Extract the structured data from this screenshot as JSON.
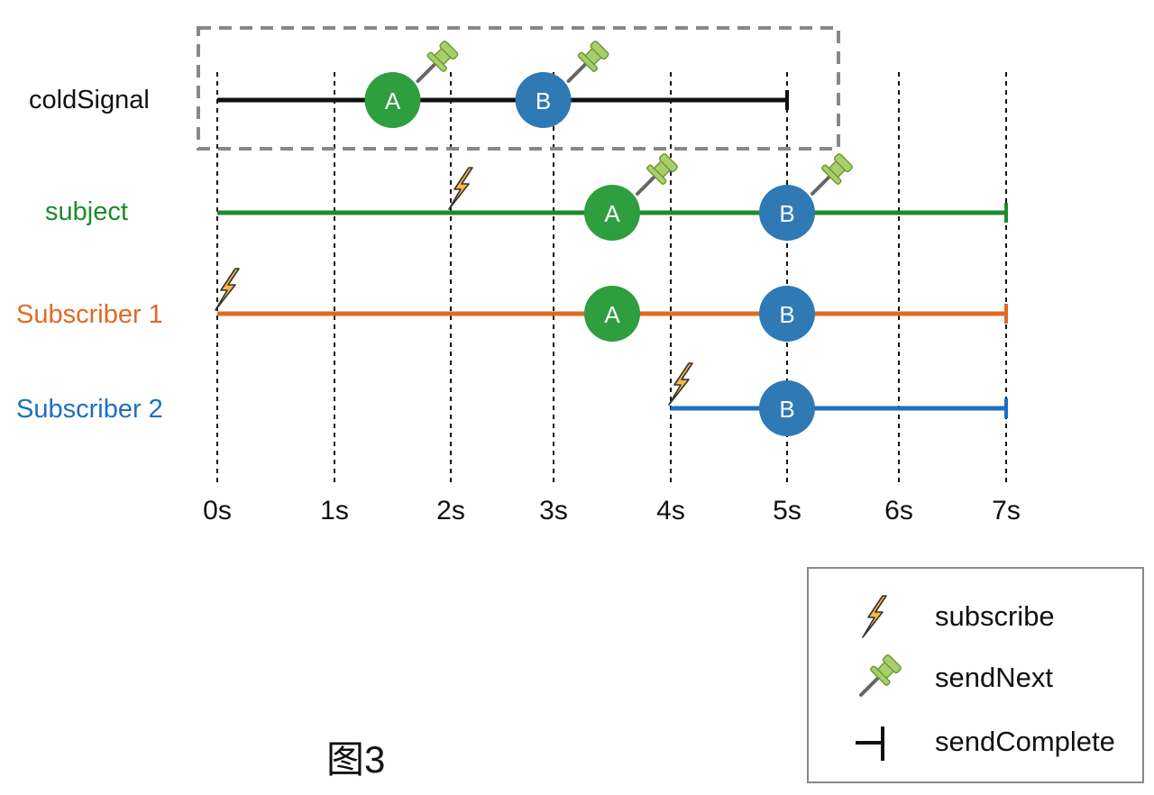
{
  "caption": "图3",
  "time_axis": {
    "ticks": [
      "0s",
      "1s",
      "2s",
      "3s",
      "4s",
      "5s",
      "6s",
      "7s"
    ]
  },
  "rows": [
    {
      "id": "coldSignal",
      "label": "coldSignal",
      "color": "#111111",
      "line_start": 0,
      "line_end": 5,
      "subscribe_at": null,
      "events": [
        {
          "value": "A",
          "at": 1.5,
          "color": "#2e9e3e",
          "pin": true
        },
        {
          "value": "B",
          "at": 2.9,
          "color": "#2f7ab5",
          "pin": true
        }
      ],
      "complete_at": 5
    },
    {
      "id": "subject",
      "label": "subject",
      "color": "#1e8a2e",
      "line_start": 0,
      "line_end": 7,
      "subscribe_at": 2,
      "events": [
        {
          "value": "A",
          "at": 3.5,
          "color": "#2e9e3e",
          "pin": true
        },
        {
          "value": "B",
          "at": 5,
          "color": "#2f7ab5",
          "pin": true
        }
      ],
      "complete_at": 7
    },
    {
      "id": "subscriber1",
      "label": "Subscriber 1",
      "color": "#e06a24",
      "line_start": 0,
      "line_end": 7,
      "subscribe_at": 0,
      "events": [
        {
          "value": "A",
          "at": 3.5,
          "color": "#2e9e3e",
          "pin": false
        },
        {
          "value": "B",
          "at": 5,
          "color": "#2f7ab5",
          "pin": false
        }
      ],
      "complete_at": 7
    },
    {
      "id": "subscriber2",
      "label": "Subscriber 2",
      "color": "#1f6fc0",
      "line_start": 4,
      "line_end": 7,
      "subscribe_at": 4,
      "events": [
        {
          "value": "B",
          "at": 5,
          "color": "#2f7ab5",
          "pin": false
        }
      ],
      "complete_at": 7
    }
  ],
  "legend": {
    "items": [
      {
        "icon": "lightning-icon",
        "label": "subscribe"
      },
      {
        "icon": "pushpin-icon",
        "label": "sendNext"
      },
      {
        "icon": "complete-bar-icon",
        "label": "sendComplete"
      }
    ]
  },
  "colors": {
    "gridline": "#111111",
    "highlight_box": "#888888",
    "bolt_fill": "#f7b944",
    "pin_head": "#a8cf6a"
  }
}
